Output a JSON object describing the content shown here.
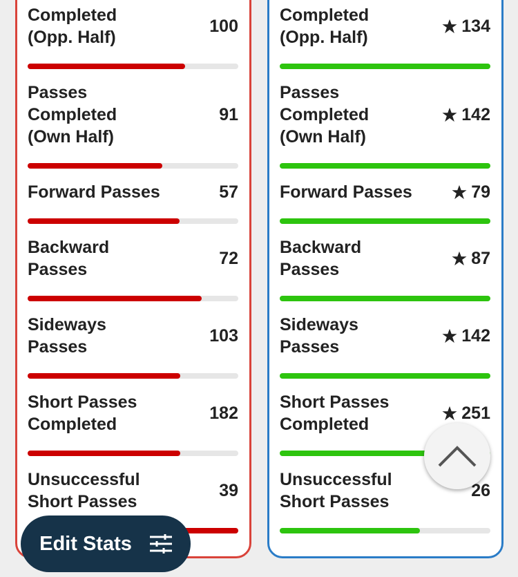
{
  "stats": [
    {
      "label": [
        "Completed",
        "(Opp. Half)"
      ],
      "values": [
        100,
        134
      ]
    },
    {
      "label": [
        "Passes",
        "Completed",
        "(Own Half)"
      ],
      "values": [
        91,
        142
      ]
    },
    {
      "label": [
        "Forward Passes"
      ],
      "values": [
        57,
        79
      ]
    },
    {
      "label": [
        "Backward",
        "Passes"
      ],
      "values": [
        72,
        87
      ]
    },
    {
      "label": [
        "Sideways",
        "Passes"
      ],
      "values": [
        103,
        142
      ]
    },
    {
      "label": [
        "Short Passes",
        "Completed"
      ],
      "values": [
        182,
        251
      ]
    },
    {
      "label": [
        "Unsuccessful",
        "Short Passes"
      ],
      "values": [
        39,
        26
      ]
    }
  ],
  "teams": [
    {
      "color": "#cc0000",
      "border": "#d9433a"
    },
    {
      "color": "#2dc40e",
      "border": "#2a7cc7"
    }
  ],
  "button": {
    "label": "Edit Stats"
  }
}
